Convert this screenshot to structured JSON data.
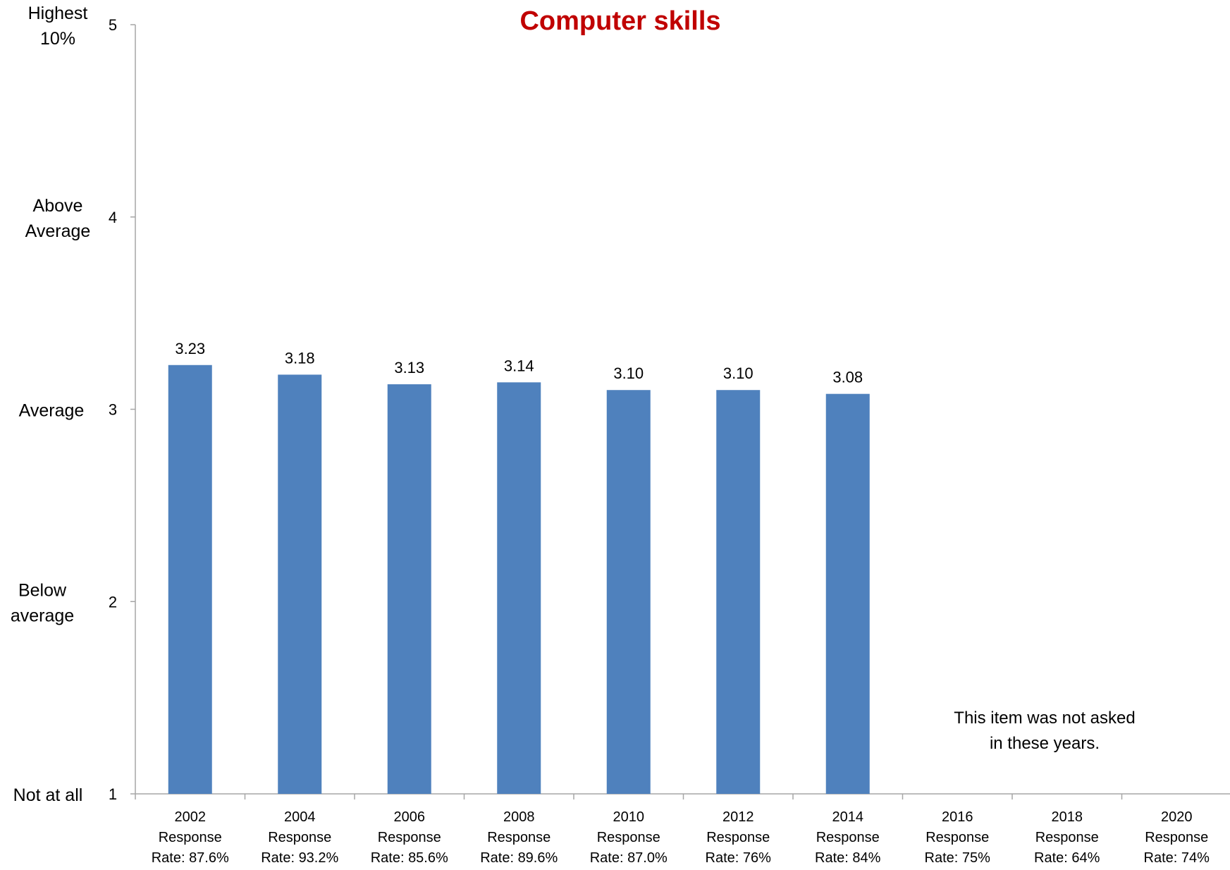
{
  "colors": {
    "title": "#C00000",
    "bar": "#4F81BD",
    "axis": "#A6A6A6",
    "text": "#000000"
  },
  "chart_data": {
    "type": "bar",
    "title": "Computer skills",
    "ylim": [
      1,
      5
    ],
    "yticks": [
      {
        "value": 5,
        "tick_label": "5",
        "category_label": [
          "Highest",
          "10%"
        ]
      },
      {
        "value": 4,
        "tick_label": "4",
        "category_label": [
          "Above",
          "Average"
        ]
      },
      {
        "value": 3,
        "tick_label": "3",
        "category_label": [
          "Average"
        ]
      },
      {
        "value": 2,
        "tick_label": "2",
        "category_label": [
          "Below",
          "average"
        ]
      },
      {
        "value": 1,
        "tick_label": "1",
        "category_label": [
          "Not at all"
        ]
      }
    ],
    "categories": [
      [
        "2002",
        "Response",
        "Rate: 87.6%"
      ],
      [
        "2004",
        "Response",
        "Rate: 93.2%"
      ],
      [
        "2006",
        "Response",
        "Rate: 85.6%"
      ],
      [
        "2008",
        "Response",
        "Rate: 89.6%"
      ],
      [
        "2010",
        "Response",
        "Rate: 87.0%"
      ],
      [
        "2012",
        "Response",
        "Rate: 76%"
      ],
      [
        "2014",
        "Response",
        "Rate: 84%"
      ],
      [
        "2016",
        "Response",
        "Rate: 75%"
      ],
      [
        "2018",
        "Response",
        "Rate: 64%"
      ],
      [
        "2020",
        "Response",
        "Rate: 74%"
      ]
    ],
    "values": [
      3.23,
      3.18,
      3.13,
      3.14,
      3.1,
      3.1,
      3.08,
      null,
      null,
      null
    ],
    "data_labels": [
      "3.23",
      "3.18",
      "3.13",
      "3.14",
      "3.10",
      "3.10",
      "3.08",
      null,
      null,
      null
    ],
    "annotation": [
      "This item was not asked",
      "in these years."
    ],
    "grid": false,
    "legend": "none"
  }
}
